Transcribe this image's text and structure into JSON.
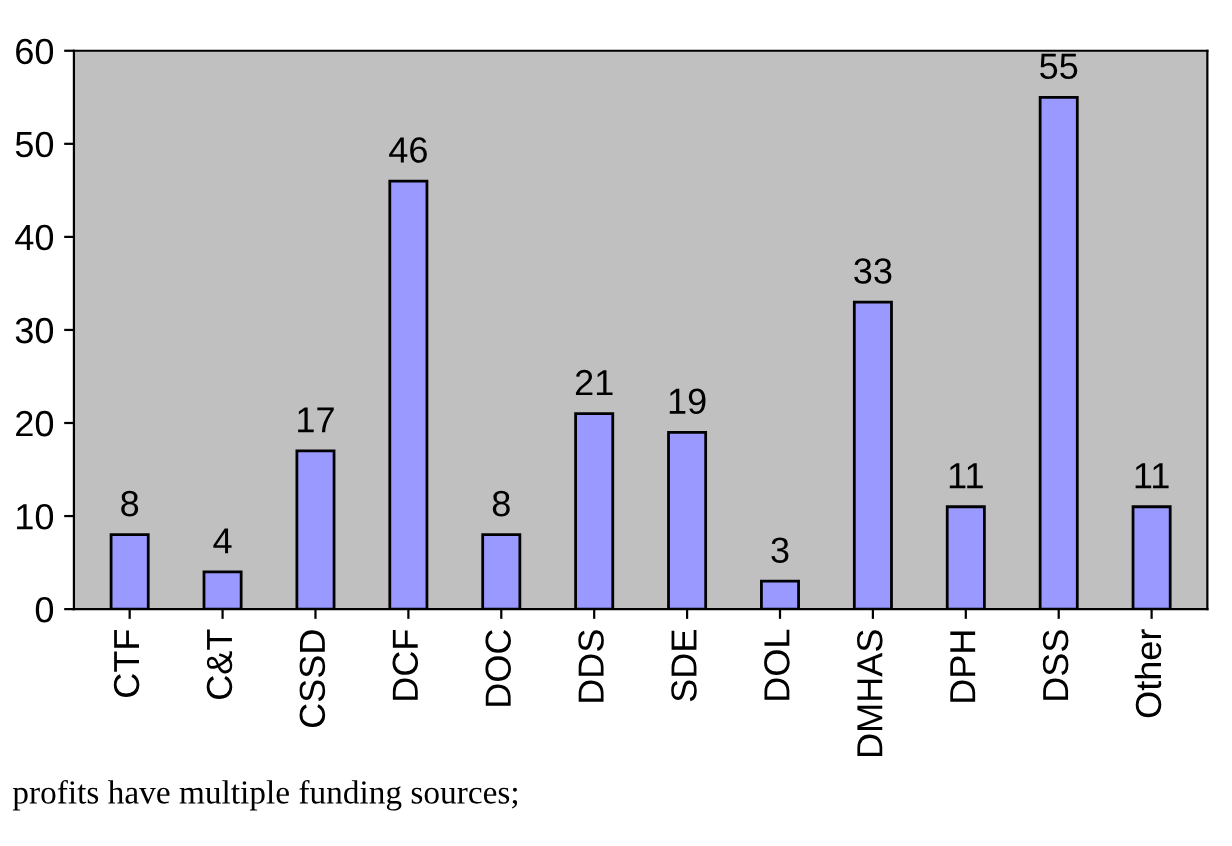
{
  "chart_data": {
    "type": "bar",
    "categories": [
      "CTF",
      "C&T",
      "CSSD",
      "DCF",
      "DOC",
      "DDS",
      "SDE",
      "DOL",
      "DMHAS",
      "DPH",
      "DSS",
      "Other"
    ],
    "values": [
      8,
      4,
      17,
      46,
      8,
      21,
      19,
      3,
      33,
      11,
      55,
      11
    ],
    "color": "#9999ff",
    "ylim": [
      0,
      60
    ],
    "yticks": [
      0,
      10,
      20,
      30,
      40,
      50,
      60
    ],
    "data_labels": true,
    "grid": false,
    "annotations": [
      "profits have multiple funding sources;"
    ]
  }
}
